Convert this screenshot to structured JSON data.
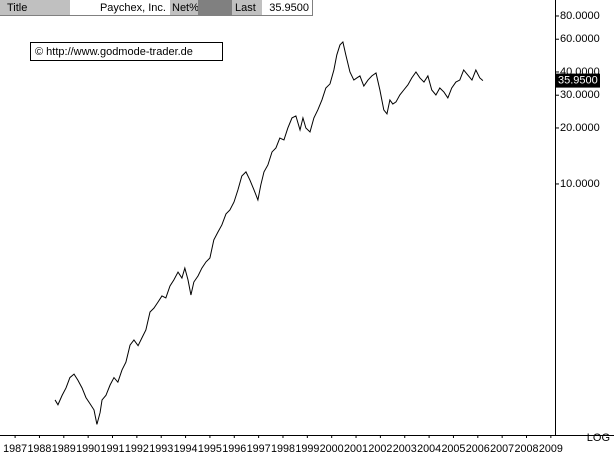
{
  "header": {
    "title_label": "Title",
    "net_label": "Net%",
    "last_label": "Last"
  },
  "chart_data": {
    "type": "line",
    "title": "Paychex, Inc.",
    "annotation": "© http://www.godmode-trader.de",
    "scale_label": "LOG",
    "log": true,
    "color": "#000000",
    "last_label": {
      "value": 35.95,
      "label": "35.9500"
    },
    "x": [
      1988.64,
      1988.76,
      1988.93,
      1989.09,
      1989.25,
      1989.42,
      1989.58,
      1989.75,
      1989.91,
      1990.07,
      1990.24,
      1990.36,
      1990.49,
      1990.57,
      1990.73,
      1990.9,
      1991.06,
      1991.22,
      1991.39,
      1991.55,
      1991.72,
      1991.88,
      1992.05,
      1992.21,
      1992.37,
      1992.54,
      1992.7,
      1992.87,
      1993.03,
      1993.19,
      1993.36,
      1993.52,
      1993.69,
      1993.85,
      1993.97,
      1994.1,
      1994.22,
      1994.34,
      1994.51,
      1994.67,
      1994.84,
      1995.0,
      1995.16,
      1995.33,
      1995.49,
      1995.66,
      1995.82,
      1995.99,
      1996.15,
      1996.31,
      1996.48,
      1996.64,
      1996.81,
      1996.97,
      1997.09,
      1997.22,
      1997.38,
      1997.55,
      1997.71,
      1997.87,
      1998.04,
      1998.2,
      1998.37,
      1998.53,
      1998.7,
      1998.82,
      1998.94,
      1999.11,
      1999.27,
      1999.43,
      1999.6,
      1999.76,
      1999.93,
      2000.09,
      2000.21,
      2000.34,
      2000.46,
      2000.58,
      2000.75,
      2000.91,
      2001.04,
      2001.16,
      2001.32,
      2001.49,
      2001.65,
      2001.82,
      2001.98,
      2002.14,
      2002.27,
      2002.39,
      2002.51,
      2002.64,
      2002.8,
      2002.96,
      2003.13,
      2003.29,
      2003.46,
      2003.62,
      2003.79,
      2003.95,
      2004.11,
      2004.28,
      2004.44,
      2004.61,
      2004.77,
      2004.93,
      2005.1,
      2005.26,
      2005.42,
      2005.59,
      2005.76,
      2005.92,
      2006.08,
      2006.21
    ],
    "values": [
      0.69,
      0.65,
      0.73,
      0.8,
      0.91,
      0.95,
      0.88,
      0.8,
      0.71,
      0.66,
      0.61,
      0.51,
      0.59,
      0.69,
      0.73,
      0.83,
      0.91,
      0.86,
      1.0,
      1.1,
      1.36,
      1.45,
      1.35,
      1.49,
      1.64,
      2.05,
      2.15,
      2.32,
      2.5,
      2.44,
      2.83,
      3.05,
      3.36,
      3.12,
      3.53,
      3.05,
      2.53,
      2.97,
      3.2,
      3.53,
      3.81,
      4.0,
      5.0,
      5.52,
      6.02,
      6.9,
      7.25,
      8.0,
      9.29,
      11.04,
      11.61,
      10.51,
      9.29,
      8.2,
      9.88,
      11.61,
      12.65,
      14.86,
      15.62,
      17.66,
      17.24,
      20.0,
      22.65,
      23.22,
      19.51,
      22.65,
      20.0,
      19.04,
      22.65,
      25.0,
      28.3,
      32.8,
      34.5,
      41.0,
      49.4,
      55.9,
      58.0,
      49.4,
      40.0,
      36.2,
      37.2,
      38.1,
      33.6,
      36.2,
      38.1,
      39.5,
      32.0,
      25.0,
      23.8,
      28.3,
      26.9,
      27.6,
      30.1,
      32.0,
      34.1,
      37.2,
      40.0,
      37.2,
      35.3,
      38.1,
      32.0,
      30.1,
      32.8,
      31.2,
      29.0,
      32.8,
      35.3,
      36.2,
      41.0,
      38.5,
      36.2,
      41.0,
      37.2,
      35.95
    ],
    "xlim": [
      1986.38,
      2009.17
    ],
    "xticks": [
      1987,
      1988,
      1989,
      1990,
      1991,
      1992,
      1993,
      1994,
      1995,
      1996,
      1997,
      1998,
      1999,
      2000,
      2001,
      2002,
      2003,
      2004,
      2005,
      2006,
      2007,
      2008,
      2009
    ],
    "ylim": [
      0.447,
      97.5
    ],
    "yticks": [
      {
        "value": 10,
        "label": "10.0000"
      },
      {
        "value": 20,
        "label": "20.0000"
      },
      {
        "value": 30,
        "label": "30.0000"
      },
      {
        "value": 40,
        "label": "40.0000"
      },
      {
        "value": 60,
        "label": "60.0000"
      },
      {
        "value": 80,
        "label": "80.0000"
      }
    ]
  }
}
